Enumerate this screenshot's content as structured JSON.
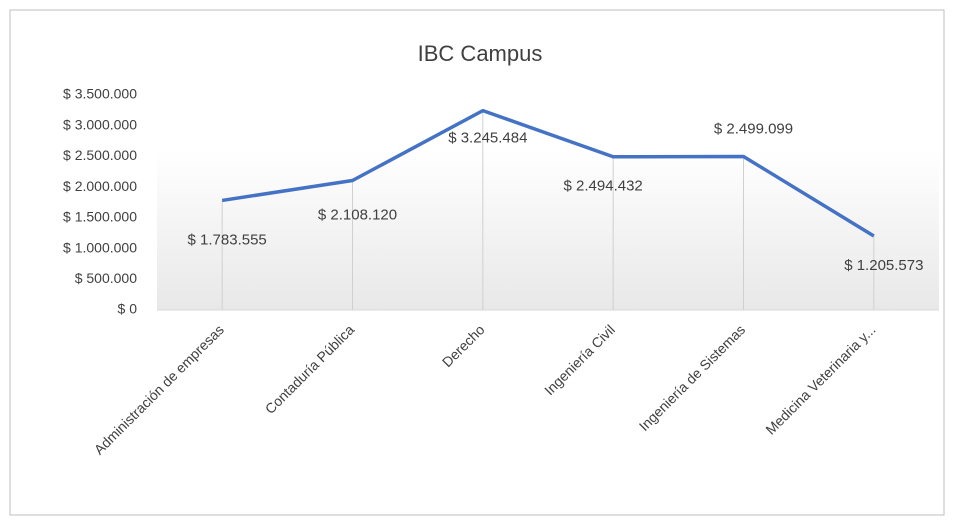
{
  "chart_data": {
    "type": "line",
    "title": "IBC Campus",
    "categories": [
      "Administración de empresas",
      "Contaduría Pública",
      "Derecho",
      "Ingeniería Civil",
      "Ingeniería de Sistemas",
      "Medicina Veterinaria y..."
    ],
    "series": [
      {
        "name": "IBC Campus",
        "color": "#4472c4",
        "values": [
          1783555,
          2108120,
          3245484,
          2494432,
          2499099,
          1205573
        ],
        "value_labels": [
          "$ 1.783.555",
          "$ 2.108.120",
          "$ 3.245.484",
          "$ 2.494.432",
          "$ 2.499.099",
          "$ 1.205.573"
        ]
      }
    ],
    "ylim": [
      0,
      3500000
    ],
    "yticks": [
      {
        "value": 0,
        "label": "$ 0"
      },
      {
        "value": 500000,
        "label": "$ 500.000"
      },
      {
        "value": 1000000,
        "label": "$ 1.000.000"
      },
      {
        "value": 1500000,
        "label": "$ 1.500.000"
      },
      {
        "value": 2000000,
        "label": "$ 2.000.000"
      },
      {
        "value": 2500000,
        "label": "$ 2.500.000"
      },
      {
        "value": 3000000,
        "label": "$ 3.000.000"
      },
      {
        "value": 3500000,
        "label": "$ 3.500.000"
      }
    ],
    "grid": false,
    "drop_lines": true
  }
}
